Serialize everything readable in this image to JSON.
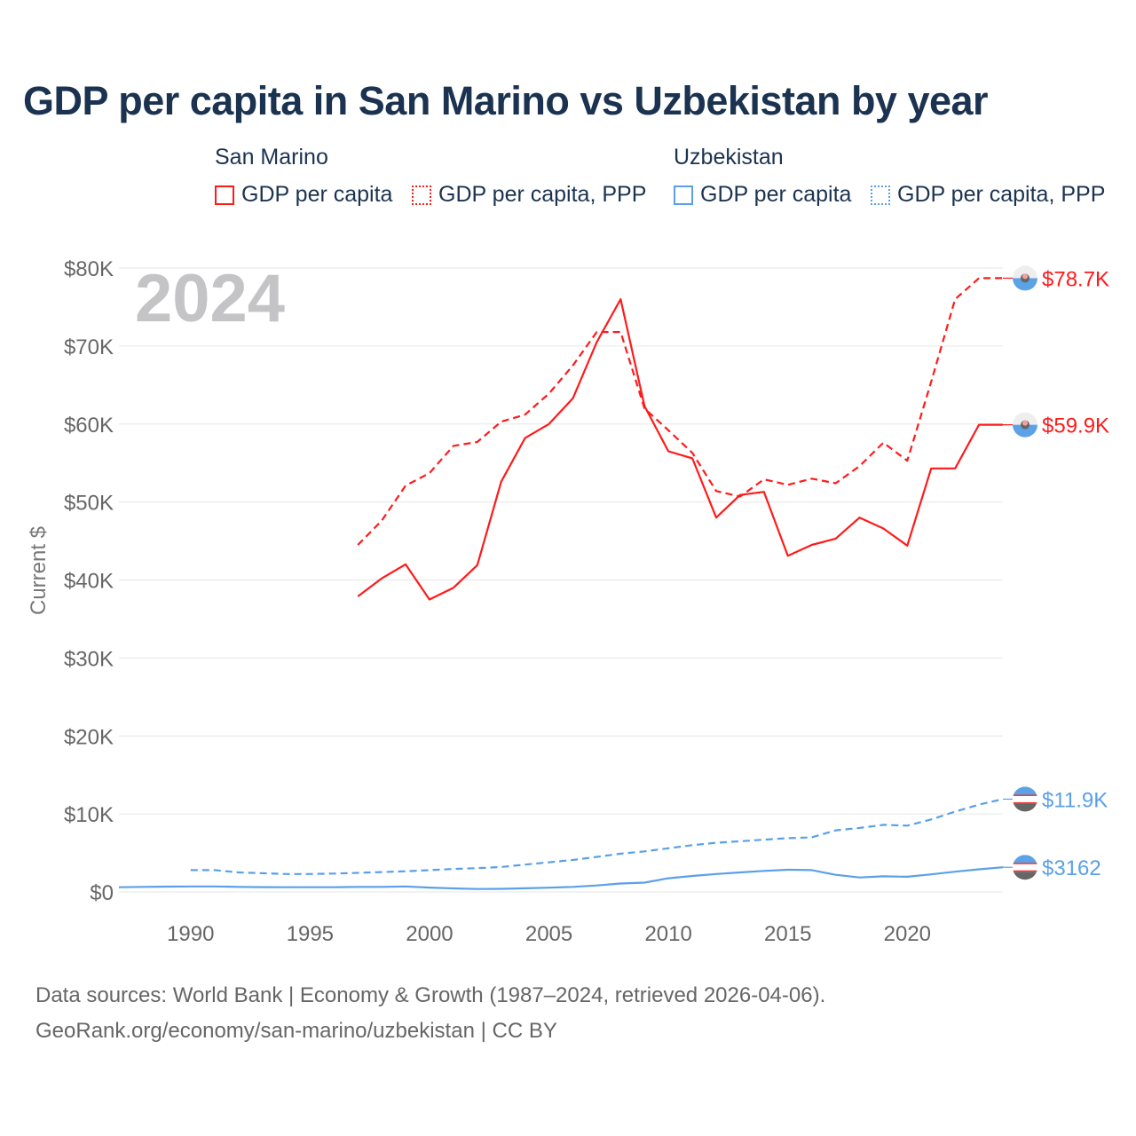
{
  "title": "GDP per capita in San Marino vs Uzbekistan by year",
  "legend": {
    "groups": [
      {
        "name": "San Marino",
        "items": [
          "GDP per capita",
          "GDP per capita, PPP"
        ],
        "color": "#ff1a1a"
      },
      {
        "name": "Uzbekistan",
        "items": [
          "GDP per capita",
          "GDP per capita, PPP"
        ],
        "color": "#5aa0e8"
      }
    ]
  },
  "year_watermark": "2024",
  "source_lines": [
    "Data sources: World Bank | Economy & Growth (1987–2024, retrieved 2026-04-06).",
    "GeoRank.org/economy/san-marino/uzbekistan | CC BY"
  ],
  "chart_data": {
    "type": "line",
    "title": "GDP per capita in San Marino vs Uzbekistan by year",
    "xlabel": "",
    "ylabel": "Current $",
    "xlim": [
      1987,
      2024
    ],
    "ylim": [
      0,
      80000
    ],
    "x_ticks": [
      1990,
      1995,
      2000,
      2005,
      2010,
      2015,
      2020
    ],
    "y_ticks": [
      0,
      10000,
      20000,
      30000,
      40000,
      50000,
      60000,
      70000,
      80000
    ],
    "y_tick_labels": [
      "$0",
      "$10K",
      "$20K",
      "$30K",
      "$40K",
      "$50K",
      "$60K",
      "$70K",
      "$80K"
    ],
    "grid": true,
    "series": [
      {
        "name": "San Marino GDP per capita",
        "color": "#ff1a1a",
        "dash": false,
        "end_label": "$59.9K",
        "flag": "san-marino",
        "x": [
          1997,
          1998,
          1999,
          2000,
          2001,
          2002,
          2003,
          2004,
          2005,
          2006,
          2007,
          2008,
          2009,
          2010,
          2011,
          2012,
          2013,
          2014,
          2015,
          2016,
          2017,
          2018,
          2019,
          2020,
          2021,
          2022,
          2023,
          2024
        ],
        "y": [
          37900,
          40200,
          42000,
          37500,
          39000,
          41900,
          52600,
          58200,
          60000,
          63300,
          70500,
          76000,
          62300,
          56500,
          55600,
          48000,
          50900,
          51300,
          43100,
          44500,
          45300,
          48000,
          46600,
          44400,
          54300,
          54300,
          59900,
          59900
        ]
      },
      {
        "name": "San Marino GDP per capita, PPP",
        "color": "#ff1a1a",
        "dash": true,
        "end_label": "$78.7K",
        "flag": "san-marino",
        "x": [
          1997,
          1998,
          1999,
          2000,
          2001,
          2002,
          2003,
          2004,
          2005,
          2006,
          2007,
          2008,
          2009,
          2010,
          2011,
          2012,
          2013,
          2014,
          2015,
          2016,
          2017,
          2018,
          2019,
          2020,
          2021,
          2022,
          2023,
          2024
        ],
        "y": [
          44500,
          47600,
          52100,
          53700,
          57200,
          57700,
          60300,
          61200,
          63900,
          67500,
          71800,
          71800,
          62000,
          59200,
          56300,
          51400,
          50700,
          52900,
          52200,
          53000,
          52400,
          54600,
          57600,
          55300,
          65400,
          76000,
          78700,
          78700
        ]
      },
      {
        "name": "Uzbekistan GDP per capita",
        "color": "#5aa0e8",
        "dash": false,
        "end_label": "$3162",
        "flag": "uzbekistan",
        "x": [
          1987,
          1988,
          1989,
          1990,
          1991,
          1992,
          1993,
          1994,
          1995,
          1996,
          1997,
          1998,
          1999,
          2000,
          2001,
          2002,
          2003,
          2004,
          2005,
          2006,
          2007,
          2008,
          2009,
          2010,
          2011,
          2012,
          2013,
          2014,
          2015,
          2016,
          2017,
          2018,
          2019,
          2020,
          2021,
          2022,
          2023,
          2024
        ],
        "y": [
          600,
          650,
          680,
          700,
          700,
          650,
          620,
          600,
          600,
          600,
          650,
          650,
          700,
          560,
          450,
          380,
          400,
          470,
          550,
          650,
          830,
          1080,
          1200,
          1750,
          2050,
          2300,
          2500,
          2700,
          2850,
          2800,
          2200,
          1850,
          2000,
          1950,
          2250,
          2600,
          2900,
          3162
        ]
      },
      {
        "name": "Uzbekistan GDP per capita, PPP",
        "color": "#5aa0e8",
        "dash": true,
        "end_label": "$11.9K",
        "flag": "uzbekistan",
        "x": [
          1990,
          1991,
          1992,
          1993,
          1994,
          1995,
          1996,
          1997,
          1998,
          1999,
          2000,
          2001,
          2002,
          2003,
          2004,
          2005,
          2006,
          2007,
          2008,
          2009,
          2010,
          2011,
          2012,
          2013,
          2014,
          2015,
          2016,
          2017,
          2018,
          2019,
          2020,
          2021,
          2022,
          2023,
          2024
        ],
        "y": [
          2800,
          2800,
          2500,
          2400,
          2300,
          2300,
          2350,
          2450,
          2550,
          2650,
          2800,
          2950,
          3050,
          3200,
          3500,
          3800,
          4100,
          4500,
          4900,
          5200,
          5600,
          6000,
          6300,
          6500,
          6700,
          6900,
          7000,
          7900,
          8200,
          8600,
          8500,
          9300,
          10300,
          11200,
          11900
        ]
      }
    ]
  }
}
